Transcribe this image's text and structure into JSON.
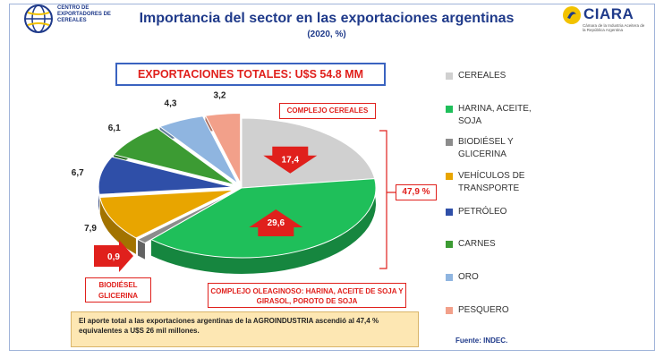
{
  "header": {
    "org_left": "CENTRO DE EXPORTADORES DE CEREALES",
    "brand_right": "CIARA",
    "brand_right_sub": "Cámara de la Industria Aceitera de la República Argentina"
  },
  "chart_data": {
    "type": "pie",
    "title": "Importancia del sector en las exportaciones argentinas",
    "subtitle": "(2020, %)",
    "total_label": "EXPORTACIONES TOTALES: U$S 54.8 MM",
    "slices": [
      {
        "name": "CEREALES",
        "value": 17.4,
        "color": "#d0d0d0",
        "label": "17,4"
      },
      {
        "name": "HARINA, ACEITE, SOJA",
        "value": 29.6,
        "color": "#1fbf5a",
        "label": "29,6"
      },
      {
        "name": "BIODIÉSEL Y GLICERINA",
        "value": 0.9,
        "color": "#8c8c8c",
        "label": "0,9"
      },
      {
        "name": "VEHÍCULOS DE TRANSPORTE",
        "value": 7.9,
        "color": "#e8a500",
        "label": "7,9"
      },
      {
        "name": "PETRÓLEO",
        "value": 6.7,
        "color": "#2f4fa8",
        "label": "6,7"
      },
      {
        "name": "CARNES",
        "value": 6.1,
        "color": "#3c9b33",
        "label": "6,1"
      },
      {
        "name": "ORO",
        "value": 4.3,
        "color": "#8fb5e0",
        "label": "4,3"
      },
      {
        "name": "PESQUERO",
        "value": 3.2,
        "color": "#f2a08a",
        "label": "3,2"
      }
    ],
    "legend_position": "right",
    "annotations": {
      "cereales": "COMPLEJO CEREALES",
      "biodiesel": "BIODIÉSEL GLICERINA",
      "oleaginoso": "COMPLEJO OLEAGINOSO: HARINA, ACEITE DE SOJA Y GIRASOL, POROTO DE SOJA",
      "bracket_pct": "47,9 %"
    }
  },
  "note": "El aporte total a las exportaciones argentinas de la AGROINDUSTRIA ascendió al 47,4 % equivalentes a U$S 26 mil millones.",
  "source": "Fuente: INDEC."
}
